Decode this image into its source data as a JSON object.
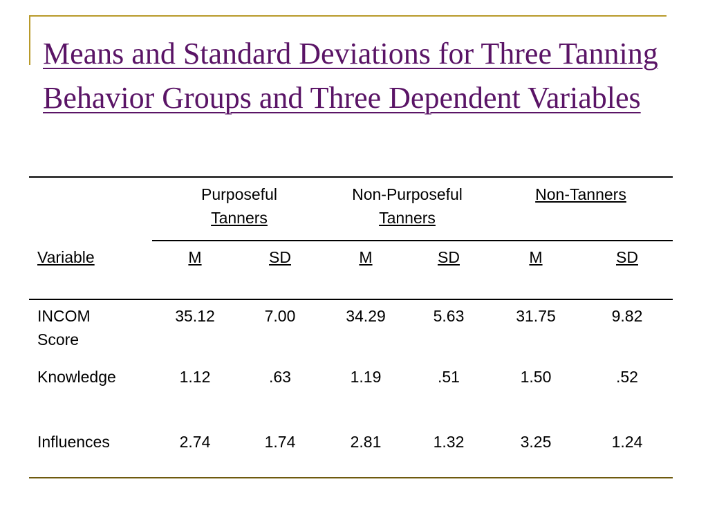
{
  "slide": {
    "title": "Means and Standard Deviations for Three Tanning Behavior Groups and Three Dependent Variables"
  },
  "table": {
    "group_headers": [
      "Purposeful Tanners",
      "Non-Purposeful Tanners",
      "Non-Tanners"
    ],
    "group_header_lines": [
      [
        "Purposeful",
        "Tanners"
      ],
      [
        "Non-Purposeful",
        "Tanners"
      ],
      [
        "Non-Tanners"
      ]
    ],
    "variable_header": "Variable",
    "sub_headers": [
      "M",
      "SD",
      "M",
      "SD",
      "M",
      "SD"
    ],
    "rows": [
      {
        "variable_lines": [
          "INCOM",
          "Score"
        ],
        "values": [
          "35.12",
          "7.00",
          "34.29",
          "5.63",
          "31.75",
          "9.82"
        ]
      },
      {
        "variable_lines": [
          "Knowledge"
        ],
        "values": [
          "1.12",
          ".63",
          "1.19",
          ".51",
          "1.50",
          ".52"
        ]
      },
      {
        "variable_lines": [
          "Influences"
        ],
        "values": [
          "2.74",
          "1.74",
          "2.81",
          "1.32",
          "3.25",
          "1.24"
        ]
      }
    ]
  },
  "colors": {
    "title": "#5a1466",
    "frame": "#b89a2a",
    "bottom_rule": "#6e5a0e"
  }
}
